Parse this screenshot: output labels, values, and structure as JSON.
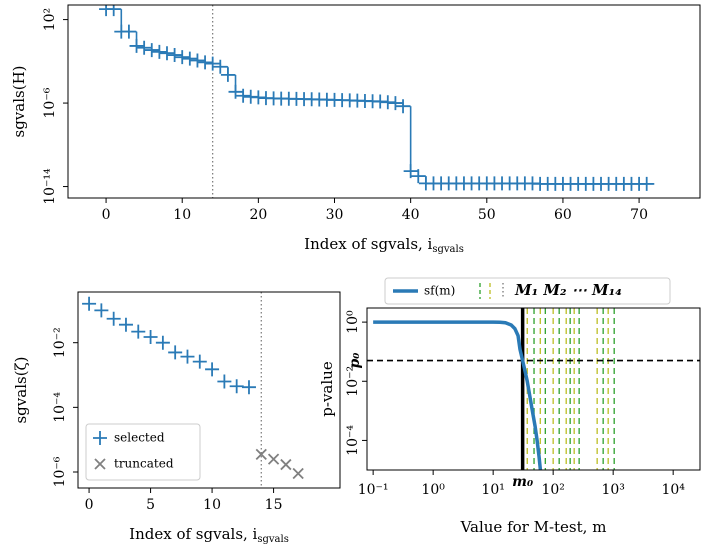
{
  "chart_data": [
    {
      "type": "step",
      "ylabel": "sgvals(H)",
      "xlabel": "Index of sgvals, i",
      "xlabel_subscript": "sgvals",
      "x": [
        0,
        1,
        2,
        3,
        4,
        5,
        6,
        7,
        8,
        9,
        10,
        11,
        12,
        13,
        14,
        15,
        16,
        17,
        18,
        19,
        20,
        21,
        22,
        23,
        24,
        25,
        26,
        27,
        28,
        29,
        30,
        31,
        32,
        33,
        34,
        35,
        36,
        37,
        38,
        39,
        40,
        41,
        42,
        43,
        44,
        45,
        46,
        47,
        48,
        49,
        50,
        51,
        52,
        53,
        54,
        55,
        56,
        57,
        58,
        59,
        60,
        61,
        62,
        63,
        64,
        65,
        66,
        67,
        68,
        69,
        70,
        71
      ],
      "series": [
        {
          "color": "#2a7ab6",
          "marker": "+",
          "values": [
            1000,
            1000,
            7,
            7,
            0.3,
            0.2,
            0.12,
            0.08,
            0.06,
            0.04,
            0.025,
            0.018,
            0.012,
            0.008,
            0.006,
            0.003,
            0.0005,
            1.2e-05,
            5e-06,
            4e-06,
            3.5e-06,
            3e-06,
            2.8e-06,
            2.7e-06,
            2.6e-06,
            2.5e-06,
            2.4e-06,
            2.3e-06,
            2.2e-06,
            2.1e-06,
            2e-06,
            1.9e-06,
            1.8e-06,
            1.7e-06,
            1.6e-06,
            1.5e-06,
            1.4e-06,
            1.2e-06,
            1e-06,
            5e-07,
            3e-13,
            1e-13,
            2e-14,
            2e-14,
            2e-14,
            2e-14,
            2e-14,
            2e-14,
            2e-14,
            2e-14,
            2e-14,
            2e-14,
            2e-14,
            2e-14,
            2e-14,
            2e-14,
            2e-14,
            1.8e-14,
            1.8e-14,
            1.8e-14,
            1.8e-14,
            1.8e-14,
            1.8e-14,
            1.8e-14,
            1.8e-14,
            1.8e-14,
            1.8e-14,
            1.8e-14,
            1.8e-14,
            1.8e-14,
            1.8e-14,
            1.8e-14
          ]
        }
      ],
      "xlim": [
        -5,
        78
      ],
      "ylim": [
        8e-16,
        2500
      ],
      "log_y": true,
      "xticks": [
        0,
        10,
        20,
        30,
        40,
        50,
        60,
        70
      ],
      "yticks": [
        {
          "value": 100,
          "label": "10²"
        },
        {
          "value": 1e-06,
          "label": "10⁻⁶"
        },
        {
          "value": 1e-14,
          "label": "10⁻¹⁴"
        }
      ],
      "vline": 14
    },
    {
      "type": "scatter",
      "ylabel": "sgvals(ζ)",
      "xlabel": "Index of sgvals, i",
      "xlabel_subscript": "sgvals",
      "series": [
        {
          "name": "selected",
          "color": "#2a7ab6",
          "marker": "+",
          "x": [
            0,
            1,
            2,
            3,
            4,
            5,
            6,
            7,
            8,
            9,
            10,
            11,
            12,
            13
          ],
          "values": [
            0.16,
            0.1,
            0.055,
            0.036,
            0.022,
            0.015,
            0.01,
            0.005,
            0.0037,
            0.0026,
            0.0015,
            0.00063,
            0.00045,
            0.00042
          ]
        },
        {
          "name": "truncated",
          "color": "#808080",
          "marker": "x",
          "x": [
            14,
            15,
            16,
            17
          ],
          "values": [
            3.5e-06,
            2.5e-06,
            1.7e-06,
            9e-07
          ]
        }
      ],
      "xlim": [
        -0.9,
        20.4
      ],
      "ylim": [
        3.2e-07,
        0.37
      ],
      "log_y": true,
      "xticks": [
        0,
        5,
        10,
        15
      ],
      "yticks": [
        {
          "value": 0.01,
          "label": "10⁻²"
        },
        {
          "value": 0.0001,
          "label": "10⁻⁴"
        },
        {
          "value": 1e-06,
          "label": "10⁻⁶"
        }
      ],
      "vline": 14,
      "legend": "lower left"
    },
    {
      "type": "line",
      "ylabel": "p-value",
      "xlabel": "Value for M-test, m",
      "series": [
        {
          "name": "sf(m)",
          "color": "#2a7ab6",
          "x": [
            0.1,
            1,
            5,
            10,
            13,
            16,
            20,
            23,
            26,
            28,
            31,
            34,
            37,
            41,
            45,
            50,
            54,
            58,
            62
          ],
          "values": [
            1,
            1,
            1,
            1,
            0.99,
            0.95,
            0.8,
            0.6,
            0.35,
            0.12,
            0.05,
            0.022,
            0.01,
            0.003,
            0.001,
            0.0003,
            0.0001,
            3e-05,
            8e-06
          ]
        }
      ],
      "vlines": {
        "name": "M₁ M₂ ⋯ M₁₄",
        "colors": [
          "#bcbd22",
          "#2ca02c"
        ],
        "values": [
          37,
          48,
          61,
          74,
          100,
          126,
          165,
          192,
          224,
          271,
          541,
          681,
          826,
          1040
        ]
      },
      "m0": {
        "value": 31,
        "label": "m₀"
      },
      "p0": {
        "value": 0.05,
        "label": "p₀"
      },
      "xlim": [
        0.079,
        28000
      ],
      "ylim": [
        1e-05,
        3
      ],
      "log_x": true,
      "log_y": true,
      "xticks": [
        {
          "value": 0.1,
          "label": "10⁻¹"
        },
        {
          "value": 1,
          "label": "10⁰"
        },
        {
          "value": 10,
          "label": "10¹"
        },
        {
          "value": 100,
          "label": "10²"
        },
        {
          "value": 1000,
          "label": "10³"
        },
        {
          "value": 10000,
          "label": "10⁴"
        }
      ],
      "yticks": [
        {
          "value": 1,
          "label": "10⁰"
        },
        {
          "value": 0.01,
          "label": "10⁻²"
        },
        {
          "value": 0.0001,
          "label": "10⁻⁴"
        }
      ],
      "legend": "upper center outside"
    }
  ]
}
